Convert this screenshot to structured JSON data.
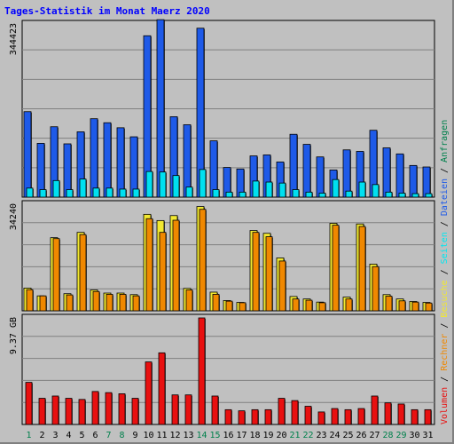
{
  "chart_data": {
    "type": "bar",
    "title": "Tages-Statistik im Monat Maerz 2020",
    "days": [
      "1",
      "2",
      "3",
      "4",
      "5",
      "6",
      "7",
      "8",
      "9",
      "10",
      "11",
      "12",
      "13",
      "14",
      "15",
      "16",
      "17",
      "18",
      "19",
      "20",
      "21",
      "22",
      "23",
      "24",
      "25",
      "26",
      "27",
      "28",
      "29",
      "30",
      "31"
    ],
    "weekend_days": [
      "1",
      "7",
      "8",
      "14",
      "15",
      "21",
      "22",
      "28",
      "29"
    ],
    "colors": {
      "anfragen": "#1e5ae8",
      "dateien": "#00e0f0",
      "seiten": "#00e8f0",
      "besuche": "#f2e830",
      "rechner": "#f08800",
      "volumen": "#e81010",
      "weekday_label": "#000000",
      "weekend_label": "#00804c",
      "title": "#0000ff"
    },
    "panels": [
      {
        "id": "top",
        "max_label": "344423",
        "ymax": 344423,
        "series": [
          {
            "name": "Anfragen",
            "key": "anfragen",
            "values": [
              170000,
              107000,
              140000,
              106000,
              130000,
              156000,
              148000,
              138000,
              120000,
              321000,
              353000,
              160000,
              144000,
              336000,
              112000,
              59000,
              56000,
              82000,
              84000,
              70000,
              125000,
              105000,
              80000,
              54000,
              94000,
              91000,
              133000,
              98000,
              86000,
              63000,
              60000
            ]
          },
          {
            "name": "Dateien",
            "key": "dateien",
            "values": [
              18000,
              15000,
              33000,
              15000,
              36000,
              18000,
              18000,
              16000,
              16000,
              51000,
              50000,
              43000,
              20000,
              55000,
              15000,
              10000,
              10000,
              32000,
              30000,
              28000,
              15000,
              10000,
              8000,
              35000,
              12000,
              30000,
              25000,
              10000,
              8000,
              7000,
              7000
            ]
          }
        ],
        "axis_label_right": "Anfragen"
      },
      {
        "id": "mid",
        "max_label": "34240",
        "ymax": 34240,
        "series": [
          {
            "name": "Besuche",
            "key": "besuche",
            "values": [
              7300,
              4800,
              23500,
              5500,
              25200,
              6700,
              5700,
              5700,
              5200,
              31000,
              29000,
              30600,
              7200,
              33500,
              6000,
              3300,
              2700,
              25800,
              24900,
              17000,
              4600,
              3800,
              2800,
              28100,
              4400,
              27900,
              15000,
              5200,
              3800,
              3000,
              2700
            ]
          },
          {
            "name": "Rechner",
            "key": "rechner",
            "values": [
              6800,
              4800,
              23200,
              5100,
              24500,
              6200,
              5300,
              5300,
              4800,
              29600,
              25200,
              29100,
              6700,
              32600,
              5300,
              3100,
              2600,
              25200,
              23800,
              16000,
              3800,
              3400,
              2600,
              27500,
              3800,
              27100,
              14200,
              4700,
              3200,
              2800,
              2500
            ]
          }
        ],
        "axis_label_right": "Dateien"
      },
      {
        "id": "bot",
        "max_label": "9.37 GB",
        "ymax": 9.37,
        "series": [
          {
            "name": "Volumen",
            "key": "volumen",
            "values": [
              3.7,
              2.3,
              2.5,
              2.3,
              2.2,
              2.9,
              2.8,
              2.7,
              2.3,
              5.5,
              6.3,
              2.6,
              2.6,
              9.37,
              2.5,
              1.3,
              1.2,
              1.3,
              1.3,
              2.3,
              2.1,
              1.6,
              1.1,
              1.4,
              1.3,
              1.4,
              2.5,
              1.9,
              1.8,
              1.3,
              1.3
            ]
          }
        ]
      }
    ],
    "legend_right": [
      {
        "text": "Volumen",
        "key": "volumen"
      },
      {
        "text": "Rechner",
        "key": "rechner"
      },
      {
        "text": "Besuche",
        "key": "besuche"
      },
      {
        "text": "Seiten",
        "key": "seiten"
      },
      {
        "text": "Dateien",
        "key": "anfragen"
      },
      {
        "text": "Anfragen",
        "key": "weekend_label"
      }
    ]
  }
}
